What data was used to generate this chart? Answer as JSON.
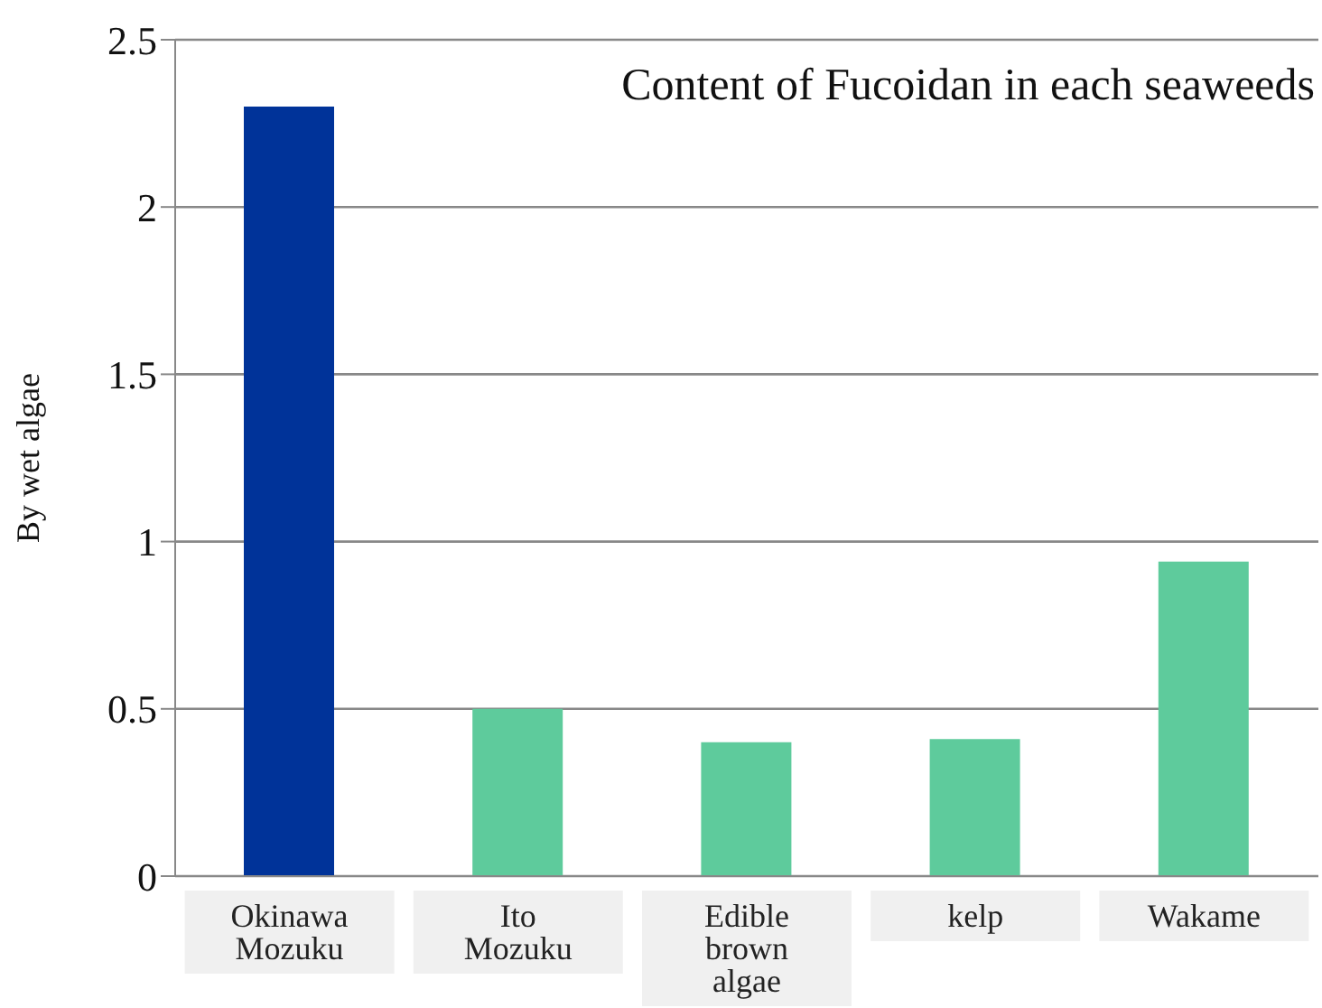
{
  "chart_data": {
    "type": "bar",
    "title": "Content of Fucoidan in each seaweeds",
    "ylabel": "By wet algae",
    "categories": [
      "Okinawa Mozuku",
      "Ito Mozuku",
      "Edible brown algae",
      "kelp",
      "Wakame"
    ],
    "values": [
      2.3,
      0.5,
      0.4,
      0.41,
      0.94
    ],
    "colors": [
      "#003399",
      "#5ecb9c",
      "#5ecb9c",
      "#5ecb9c",
      "#5ecb9c"
    ],
    "ylim": [
      0,
      2.5
    ],
    "yticks": [
      0,
      0.5,
      1,
      1.5,
      2,
      2.5
    ],
    "grid": "y"
  }
}
